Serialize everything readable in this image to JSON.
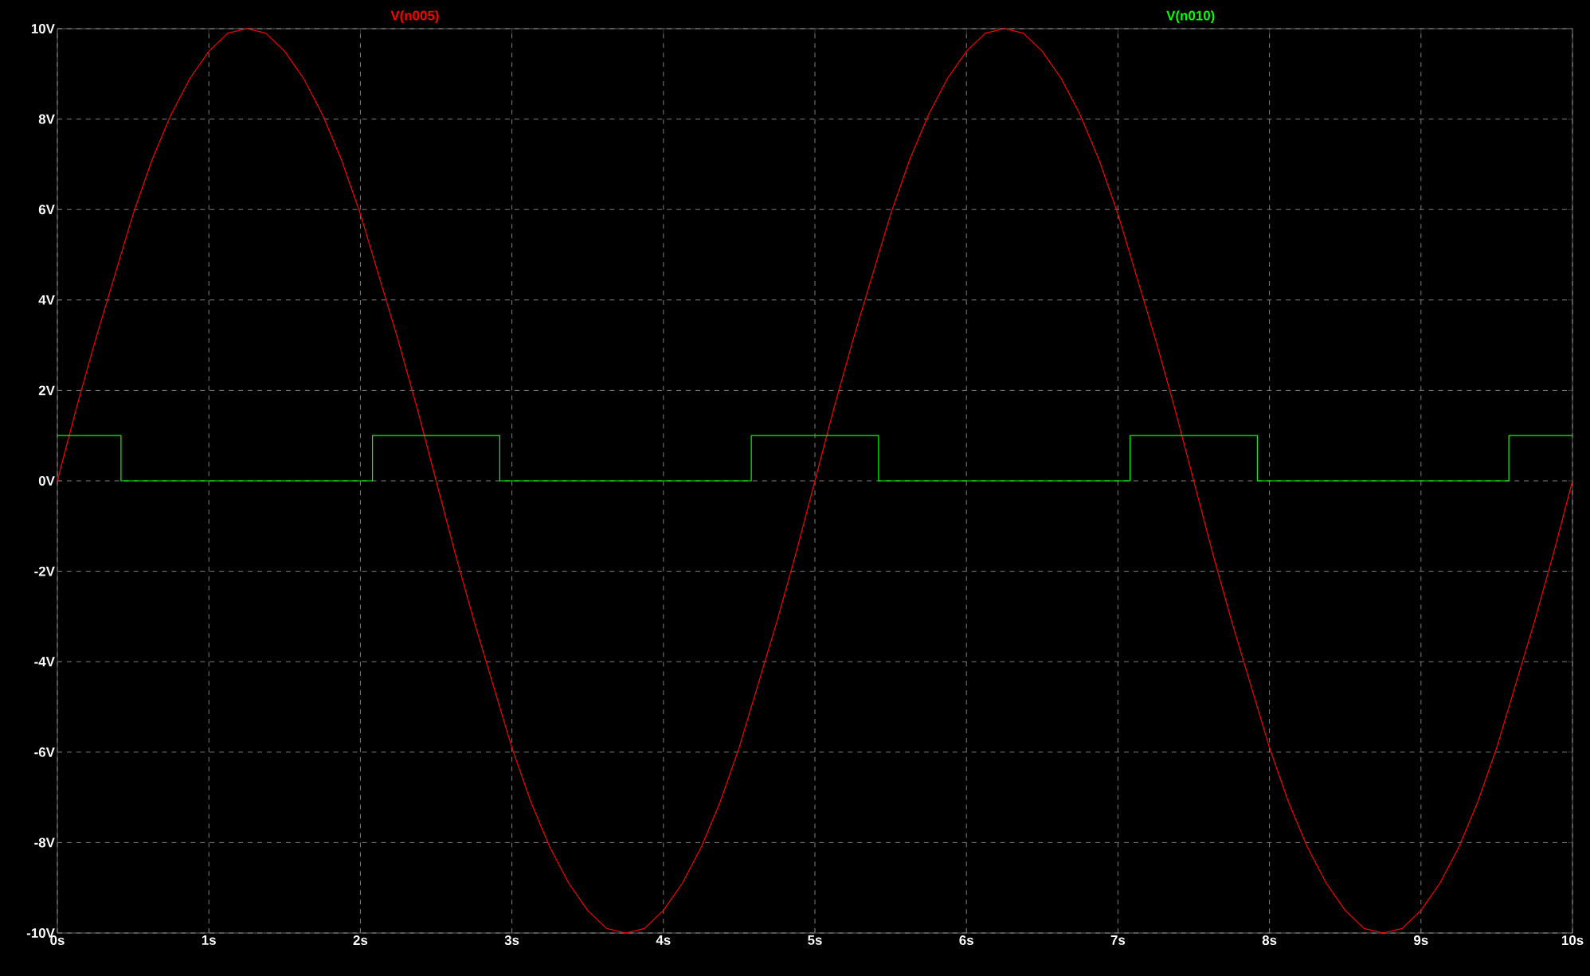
{
  "chart_data": {
    "type": "line",
    "series": [
      {
        "name": "V(n005)",
        "color": "#ff0000",
        "x": [
          0,
          0.125,
          0.25,
          0.375,
          0.5,
          0.625,
          0.75,
          0.875,
          1,
          1.125,
          1.25,
          1.375,
          1.5,
          1.625,
          1.75,
          1.875,
          2,
          2.125,
          2.25,
          2.375,
          2.5,
          2.625,
          2.75,
          2.875,
          3,
          3.125,
          3.25,
          3.375,
          3.5,
          3.625,
          3.75,
          3.875,
          4,
          4.125,
          4.25,
          4.375,
          4.5,
          4.625,
          4.75,
          4.875,
          5,
          5.125,
          5.25,
          5.375,
          5.5,
          5.625,
          5.75,
          5.875,
          6,
          6.125,
          6.25,
          6.375,
          6.5,
          6.625,
          6.75,
          6.875,
          7,
          7.125,
          7.25,
          7.375,
          7.5,
          7.625,
          7.75,
          7.875,
          8,
          8.125,
          8.25,
          8.375,
          8.5,
          8.625,
          8.75,
          8.875,
          9,
          9.125,
          9.25,
          9.375,
          9.5,
          9.625,
          9.75,
          9.875,
          10
        ],
        "values": [
          0,
          1.6,
          3.1,
          4.5,
          5.9,
          7.1,
          8.1,
          8.9,
          9.5,
          9.9,
          10,
          9.9,
          9.5,
          8.9,
          8.1,
          7.1,
          5.9,
          4.5,
          3.1,
          1.6,
          0,
          -1.6,
          -3.1,
          -4.5,
          -5.9,
          -7.1,
          -8.1,
          -8.9,
          -9.5,
          -9.9,
          -10,
          -9.9,
          -9.5,
          -8.9,
          -8.1,
          -7.1,
          -5.9,
          -4.5,
          -3.1,
          -1.6,
          0,
          1.6,
          3.1,
          4.5,
          5.9,
          7.1,
          8.1,
          8.9,
          9.5,
          9.9,
          10,
          9.9,
          9.5,
          8.9,
          8.1,
          7.1,
          5.9,
          4.5,
          3.1,
          1.6,
          0,
          -1.6,
          -3.1,
          -4.5,
          -5.9,
          -7.1,
          -8.1,
          -8.9,
          -9.5,
          -9.9,
          -10,
          -9.9,
          -9.5,
          -8.9,
          -8.1,
          -7.1,
          -5.9,
          -4.5,
          -3.1,
          -1.6,
          0
        ]
      },
      {
        "name": "V(n010)",
        "color": "#00ff00",
        "type": "step",
        "x": [
          0,
          0.42,
          2.08,
          2.92,
          4.58,
          5.42,
          7.08,
          7.92,
          9.58,
          10
        ],
        "values": [
          1,
          0,
          1,
          0,
          1,
          0,
          1,
          0,
          1,
          1
        ]
      }
    ],
    "xlim": [
      0,
      10
    ],
    "ylim": [
      -10,
      10
    ],
    "xticks": [
      {
        "value": 0,
        "label": "0s"
      },
      {
        "value": 1,
        "label": "1s"
      },
      {
        "value": 2,
        "label": "2s"
      },
      {
        "value": 3,
        "label": "3s"
      },
      {
        "value": 4,
        "label": "4s"
      },
      {
        "value": 5,
        "label": "5s"
      },
      {
        "value": 6,
        "label": "6s"
      },
      {
        "value": 7,
        "label": "7s"
      },
      {
        "value": 8,
        "label": "8s"
      },
      {
        "value": 9,
        "label": "9s"
      },
      {
        "value": 10,
        "label": "10s"
      }
    ],
    "yticks": [
      {
        "value": -10,
        "label": "-10V"
      },
      {
        "value": -8,
        "label": "-8V"
      },
      {
        "value": -6,
        "label": "-6V"
      },
      {
        "value": -4,
        "label": "-4V"
      },
      {
        "value": -2,
        "label": "-2V"
      },
      {
        "value": 0,
        "label": "0V"
      },
      {
        "value": 2,
        "label": "2V"
      },
      {
        "value": 4,
        "label": "4V"
      },
      {
        "value": 6,
        "label": "6V"
      },
      {
        "value": 8,
        "label": "8V"
      },
      {
        "value": 10,
        "label": "10V"
      }
    ],
    "grid": true,
    "legend": "top"
  }
}
